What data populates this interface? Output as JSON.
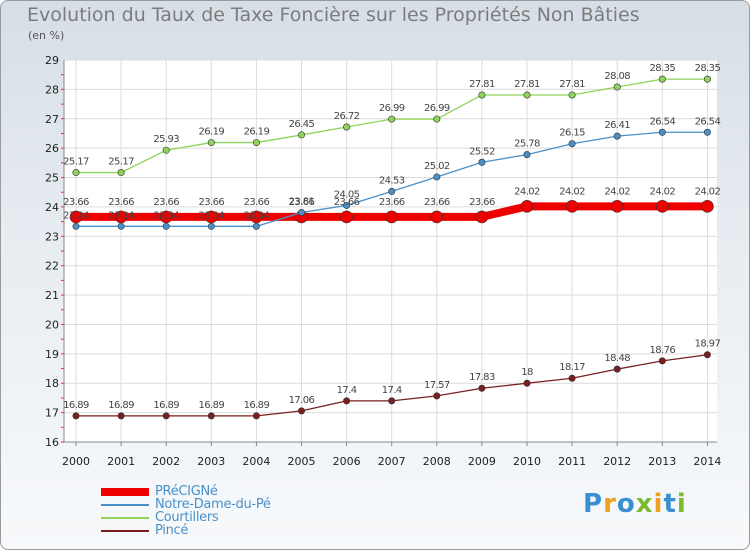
{
  "title": "Evolution du Taux de Taxe Foncière sur les Propriétés Non Bâties",
  "unit_label": "(en %)",
  "logo": {
    "letters": [
      "P",
      "r",
      "o",
      "x",
      "i",
      "t",
      "i"
    ]
  },
  "chart_data": {
    "type": "line",
    "x": [
      2000,
      2001,
      2002,
      2003,
      2004,
      2005,
      2006,
      2007,
      2008,
      2009,
      2010,
      2011,
      2012,
      2013,
      2014
    ],
    "ylim": [
      16,
      29
    ],
    "yticks": [
      16,
      17,
      18,
      19,
      20,
      21,
      22,
      23,
      24,
      25,
      26,
      27,
      28,
      29
    ],
    "grid": true,
    "legend_position": "bottom-left",
    "series": [
      {
        "name": "PRéCIGNé",
        "color": "#ee0000",
        "values": [
          23.66,
          23.66,
          23.66,
          23.66,
          23.66,
          23.66,
          23.66,
          23.66,
          23.66,
          23.66,
          24.02,
          24.02,
          24.02,
          24.02,
          24.02
        ]
      },
      {
        "name": "Notre-Dame-du-Pé",
        "color": "#4a90c8",
        "values": [
          23.34,
          23.34,
          23.34,
          23.34,
          23.34,
          23.81,
          24.05,
          24.53,
          25.02,
          25.52,
          25.78,
          26.15,
          26.41,
          26.54,
          26.54
        ]
      },
      {
        "name": "Courtillers",
        "color": "#8fd45a",
        "values": [
          25.17,
          25.17,
          25.93,
          26.19,
          26.19,
          26.45,
          26.72,
          26.99,
          26.99,
          27.81,
          27.81,
          27.81,
          28.08,
          28.35,
          28.35
        ]
      },
      {
        "name": "Pincé",
        "color": "#7a1f1f",
        "values": [
          16.89,
          16.89,
          16.89,
          16.89,
          16.89,
          17.06,
          17.4,
          17.4,
          17.57,
          17.83,
          18,
          18.17,
          18.48,
          18.76,
          18.97
        ]
      }
    ]
  }
}
